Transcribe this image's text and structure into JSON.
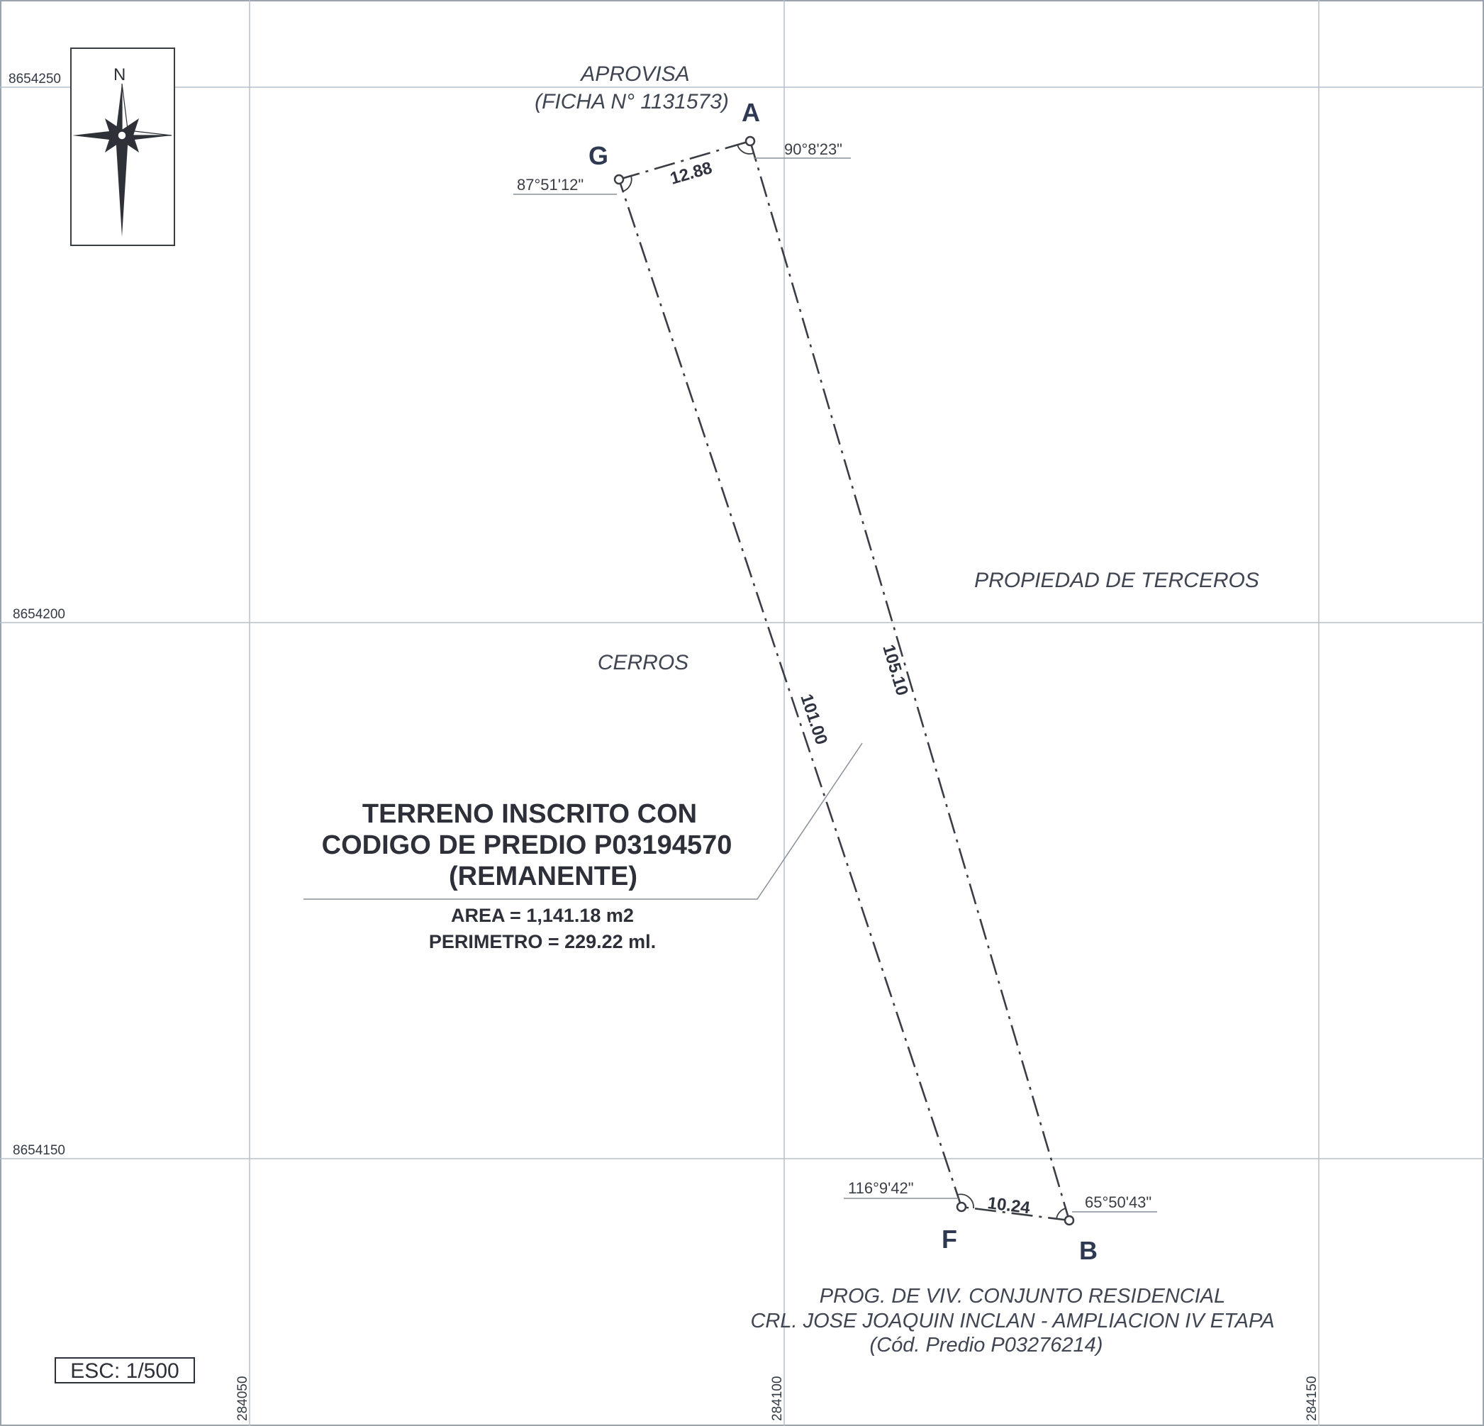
{
  "grid": {
    "northings": [
      "8654250",
      "8654200",
      "8654150"
    ],
    "eastings": [
      "284050",
      "284100",
      "284150"
    ]
  },
  "north_arrow": {
    "label": "N"
  },
  "vertices": {
    "A": {
      "label": "A",
      "angle": "90°8'23\""
    },
    "G": {
      "label": "G",
      "angle": "87°51'12\""
    },
    "F": {
      "label": "F",
      "angle": "116°9'42\""
    },
    "B": {
      "label": "B",
      "angle": "65°50'43\""
    }
  },
  "distances": {
    "GA": "12.88",
    "AB": "105.10",
    "GF": "101.00",
    "FB": "10.24"
  },
  "neighbors": {
    "north": {
      "line1": "APROVISA",
      "line2": "(FICHA N° 1131573)"
    },
    "east": "PROPIEDAD DE TERCEROS",
    "west": "CERROS",
    "south": {
      "line1": "PROG. DE VIV. CONJUNTO RESIDENCIAL",
      "line2": "CRL. JOSE JOAQUIN INCLAN - AMPLIACION IV ETAPA",
      "line3": "(Cód. Predio P03276214)"
    }
  },
  "parcel": {
    "title_line1": "TERRENO INSCRITO CON",
    "title_line2": "CODIGO DE PREDIO P03194570",
    "title_line3": "(REMANENTE)",
    "area": "AREA = 1,141.18 m2",
    "perimeter": "PERIMETRO = 229.22 ml."
  },
  "scale": "ESC: 1/500"
}
